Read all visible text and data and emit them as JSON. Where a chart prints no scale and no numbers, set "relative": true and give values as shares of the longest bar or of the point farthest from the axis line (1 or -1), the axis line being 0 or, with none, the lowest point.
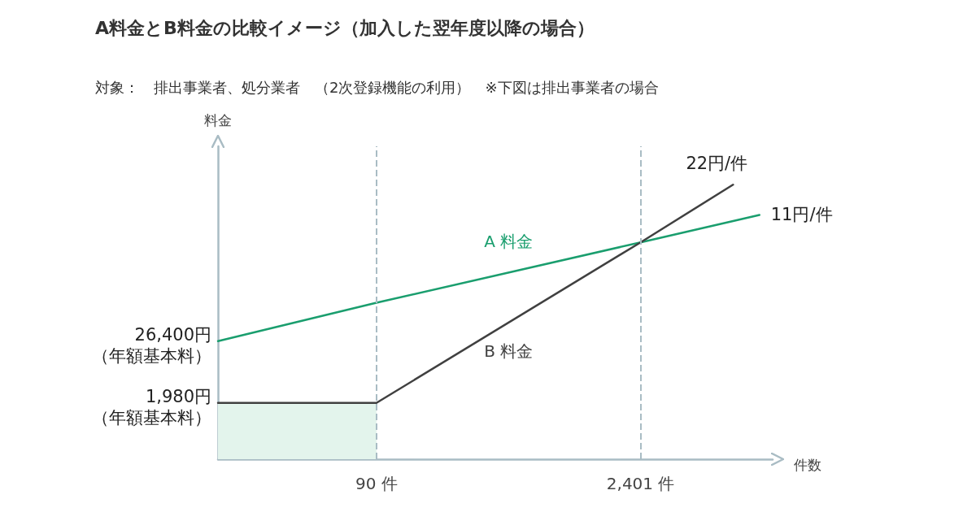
{
  "chart_data": {
    "type": "line",
    "title": "A料金とB料金の比較イメージ（加入した翌年度以降の場合）",
    "subtitle": "対象：　排出事業者、処分業者　（2次登録機能の利用）　※下図は排出事業者の場合",
    "ylabel": "料金",
    "xlabel": "件数",
    "relative": true,
    "marker": "none",
    "grid": false,
    "legend": false,
    "categories": [
      null,
      null,
      null,
      null,
      null,
      null,
      null,
      null,
      null,
      null,
      null,
      null,
      "90 件",
      null,
      null,
      null,
      null,
      null,
      null,
      null,
      null,
      null,
      null,
      null,
      null,
      null,
      null,
      null,
      null,
      null,
      null,
      null,
      "2,401 件",
      null,
      null,
      null,
      null,
      null,
      null,
      null,
      null,
      null,
      null
    ],
    "series": [
      {
        "type": "area",
        "color": "#e3f4ec",
        "values": [
          0.205,
          null,
          null,
          null,
          null,
          null,
          null,
          null,
          null,
          null,
          null,
          null,
          0.205,
          null,
          null,
          null,
          null,
          null,
          null,
          null,
          null,
          null,
          null,
          null,
          null,
          null,
          null,
          null,
          null,
          null,
          null,
          null,
          null,
          null,
          null,
          null,
          null,
          null,
          null,
          null,
          null,
          null,
          null
        ]
      },
      {
        "name": "A 料金",
        "color": "#1a9e6e",
        "values": [
          0.43,
          null,
          null,
          null,
          null,
          null,
          null,
          null,
          null,
          null,
          null,
          null,
          0.57,
          null,
          null,
          null,
          null,
          null,
          null,
          null,
          null,
          null,
          null,
          null,
          null,
          null,
          null,
          null,
          null,
          null,
          null,
          null,
          0.79,
          null,
          null,
          null,
          null,
          null,
          null,
          null,
          null,
          0.89,
          null
        ]
      },
      {
        "name": "B 料金",
        "color": "#404040",
        "values": [
          0.205,
          null,
          null,
          null,
          null,
          null,
          null,
          null,
          null,
          null,
          null,
          null,
          0.205,
          null,
          null,
          null,
          null,
          null,
          null,
          null,
          null,
          null,
          null,
          null,
          null,
          null,
          null,
          null,
          null,
          null,
          null,
          null,
          0.79,
          null,
          null,
          null,
          null,
          null,
          null,
          1,
          null,
          null,
          null
        ]
      }
    ],
    "ref_lines": [
      {
        "axis": "x",
        "value": "90 件",
        "color": "#a9bcc4",
        "line_style": "dashed"
      },
      {
        "axis": "x",
        "value": "2,401 件",
        "color": "#a9bcc4",
        "line_style": "dashed"
      }
    ],
    "annotations": [
      "26,400円（年額基本料）",
      "1,980円（年額基本料）",
      "11円/件",
      "22円/件"
    ]
  }
}
